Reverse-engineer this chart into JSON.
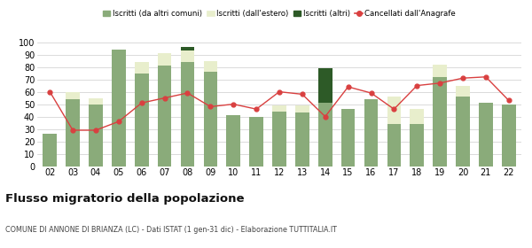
{
  "years": [
    "02",
    "03",
    "04",
    "05",
    "06",
    "07",
    "08",
    "09",
    "10",
    "11",
    "12",
    "13",
    "14",
    "15",
    "16",
    "17",
    "18",
    "19",
    "20",
    "21",
    "22"
  ],
  "iscritti_comuni": [
    26,
    54,
    50,
    94,
    75,
    81,
    84,
    76,
    41,
    40,
    44,
    43,
    51,
    46,
    54,
    34,
    34,
    72,
    56,
    51,
    50
  ],
  "iscritti_estero": [
    0,
    6,
    5,
    0,
    9,
    10,
    9,
    9,
    0,
    0,
    5,
    6,
    0,
    0,
    0,
    22,
    12,
    10,
    9,
    0,
    0
  ],
  "iscritti_altri": [
    0,
    0,
    0,
    0,
    0,
    0,
    3,
    0,
    0,
    0,
    0,
    0,
    28,
    0,
    0,
    0,
    0,
    0,
    0,
    0,
    0
  ],
  "cancellati": [
    60,
    29,
    29,
    36,
    51,
    55,
    59,
    48,
    50,
    46,
    60,
    58,
    40,
    64,
    59,
    46,
    65,
    67,
    71,
    72,
    53
  ],
  "color_comuni": "#8aab7a",
  "color_estero": "#e8eecc",
  "color_altri": "#2d5a27",
  "color_cancellati": "#d94040",
  "ylim": [
    0,
    100
  ],
  "yticks": [
    0,
    10,
    20,
    30,
    40,
    50,
    60,
    70,
    80,
    90,
    100
  ],
  "title": "Flusso migratorio della popolazione",
  "subtitle": "COMUNE DI ANNONE DI BRIANZA (LC) - Dati ISTAT (1 gen-31 dic) - Elaborazione TUTTITALIA.IT",
  "legend_labels": [
    "Iscritti (da altri comuni)",
    "Iscritti (dall'estero)",
    "Iscritti (altri)",
    "Cancellati dall'Anagrafe"
  ],
  "bg_color": "#ffffff",
  "grid_color": "#cccccc"
}
